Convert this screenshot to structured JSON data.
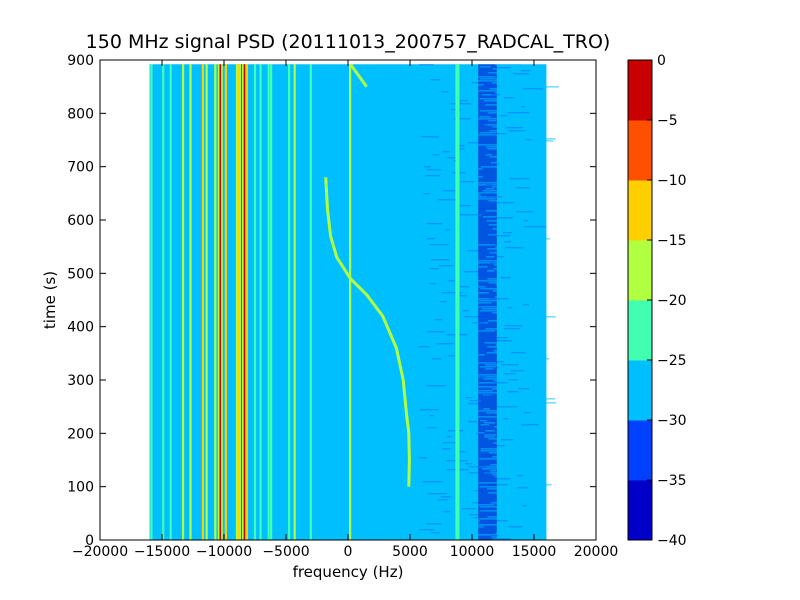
{
  "chart_data": {
    "type": "heatmap",
    "title": "150 MHz signal PSD (20111013_200757_RADCAL_TRO)",
    "xlabel": "frequency (Hz)",
    "ylabel": "time (s)",
    "xlim": [
      -20000,
      20000
    ],
    "ylim": [
      0,
      900
    ],
    "xticks": [
      -20000,
      -15000,
      -10000,
      -5000,
      0,
      5000,
      10000,
      15000,
      20000
    ],
    "xtick_labels": [
      "−20000",
      "−15000",
      "−10000",
      "−5000",
      "0",
      "5000",
      "10000",
      "15000",
      "20000"
    ],
    "yticks": [
      0,
      100,
      200,
      300,
      400,
      500,
      600,
      700,
      800,
      900
    ],
    "ytick_labels": [
      "0",
      "100",
      "200",
      "300",
      "400",
      "500",
      "600",
      "700",
      "800",
      "900"
    ],
    "data_extent": {
      "x": [
        -16000,
        16000
      ],
      "y": [
        0,
        892
      ]
    },
    "background_level": -27.5,
    "colorbar": {
      "levels": [
        -40,
        -35,
        -30,
        -25,
        -20,
        -15,
        -10,
        -5,
        0
      ],
      "tick_labels": [
        "−40",
        "−35",
        "−30",
        "−25",
        "−20",
        "−15",
        "−10",
        "−5",
        "0"
      ],
      "colors": [
        "#0000c8",
        "#0040ff",
        "#00bfff",
        "#40ffb0",
        "#b0ff40",
        "#ffcf00",
        "#ff5000",
        "#c80000"
      ]
    },
    "vertical_lines": [
      {
        "x": -15850,
        "y": [
          0,
          892
        ],
        "level": -22.5
      },
      {
        "x": -14900,
        "y": [
          0,
          892
        ],
        "level": -22.5
      },
      {
        "x": -14300,
        "y": [
          0,
          892
        ],
        "level": -22.5
      },
      {
        "x": -13300,
        "y": [
          0,
          892
        ],
        "level": -17.5
      },
      {
        "x": -12700,
        "y": [
          0,
          892
        ],
        "level": -17.5
      },
      {
        "x": -11700,
        "y": [
          0,
          892
        ],
        "level": -12.5
      },
      {
        "x": -11400,
        "y": [
          0,
          892
        ],
        "level": -17.5
      },
      {
        "x": -10700,
        "y": [
          0,
          892
        ],
        "level": -17.5
      },
      {
        "x": -10300,
        "y": [
          0,
          892
        ],
        "level": -2.5
      },
      {
        "x": -9850,
        "y": [
          0,
          892
        ],
        "level": -12.5
      },
      {
        "x": -8950,
        "y": [
          0,
          892
        ],
        "level": -17.5
      },
      {
        "x": -8800,
        "y": [
          0,
          892
        ],
        "level": -12.5
      },
      {
        "x": -8550,
        "y": [
          0,
          892
        ],
        "level": -2.5
      },
      {
        "x": -8350,
        "y": [
          0,
          892
        ],
        "level": -2.5
      },
      {
        "x": -8150,
        "y": [
          0,
          892
        ],
        "level": -12.5
      },
      {
        "x": -7500,
        "y": [
          0,
          892
        ],
        "level": -22.5
      },
      {
        "x": -7050,
        "y": [
          0,
          892
        ],
        "level": -22.5
      },
      {
        "x": -6400,
        "y": [
          0,
          892
        ],
        "level": -22.5
      },
      {
        "x": -6200,
        "y": [
          0,
          892
        ],
        "level": -22.5
      },
      {
        "x": -4750,
        "y": [
          0,
          892
        ],
        "level": -22.5
      },
      {
        "x": -4300,
        "y": [
          0,
          892
        ],
        "level": -17.5
      },
      {
        "x": -3000,
        "y": [
          0,
          892
        ],
        "level": -22.5
      },
      {
        "x": 170,
        "y": [
          0,
          892
        ],
        "level": -17.5
      },
      {
        "x": 8750,
        "y": [
          0,
          892
        ],
        "level": -22.5
      },
      {
        "x": 8900,
        "y": [
          0,
          892
        ],
        "level": -22.5
      }
    ],
    "doppler_track": {
      "level": -17.5,
      "points": [
        [
          4900,
          100
        ],
        [
          4950,
          150
        ],
        [
          4900,
          200
        ],
        [
          4700,
          240
        ],
        [
          4450,
          300
        ],
        [
          3900,
          360
        ],
        [
          2800,
          420
        ],
        [
          1500,
          460
        ],
        [
          200,
          490
        ],
        [
          -900,
          530
        ],
        [
          -1400,
          570
        ],
        [
          -1650,
          620
        ],
        [
          -1800,
          680
        ]
      ]
    },
    "short_tracks": [
      {
        "level": -17.5,
        "points": [
          [
            200,
            892
          ],
          [
            1500,
            850
          ]
        ]
      }
    ],
    "noisy_band": {
      "x": [
        10500,
        12000
      ],
      "y": [
        0,
        892
      ],
      "level": -37.5
    }
  }
}
